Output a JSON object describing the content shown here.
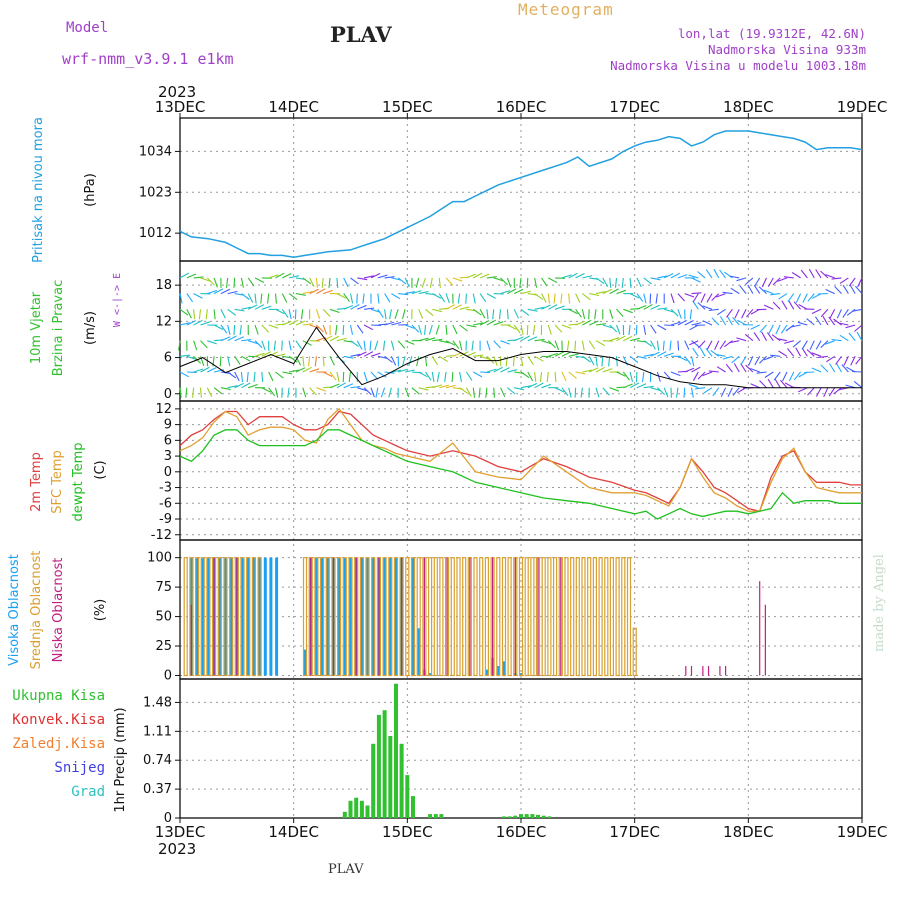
{
  "header": {
    "title": "PLAV",
    "meteogram": "Meteogram",
    "model_label": "Model",
    "model_name": "wrf-nmm_v3.9.1 e1km",
    "lonlat": "lon,lat (19.9312E, 42.6N)",
    "altitude": "Nadmorska Visina 933m",
    "model_altitude": "Nadmorska Visina u modelu 1003.18m",
    "footer": "PLAV",
    "credit": "made by Angel"
  },
  "colors": {
    "pressure": "#22a0e0",
    "wind_speed": "#000000",
    "temp_2m": "#e04040",
    "temp_sfc": "#e0a030",
    "dewpoint": "#20c020",
    "high_cloud": "#1aa0f0",
    "mid_cloud": "#d8a030",
    "low_cloud": "#c02080",
    "precip_total": "#30c030",
    "precip_conv": "#e03030",
    "precip_front": "#f08030",
    "snow": "#4040e0",
    "hail": "#30c0c0"
  },
  "chart_data": {
    "type": "line",
    "top_axis_year": "2023",
    "bottom_axis_year": "2023",
    "x_ticks": [
      "13DEC",
      "14DEC",
      "15DEC",
      "16DEC",
      "17DEC",
      "18DEC",
      "19DEC"
    ],
    "x_range_days": [
      0,
      6
    ],
    "panels": [
      {
        "name": "pressure",
        "ylabel_lines": [
          "Pritisak na nivou mora",
          "(hPa)"
        ],
        "yticks": [
          1012,
          1023,
          1034
        ],
        "ylim": [
          1004.5,
          1043
        ],
        "series": [
          {
            "x": [
              0,
              0.1,
              0.25,
              0.4,
              0.5,
              0.6,
              0.7,
              0.8,
              0.9,
              1.0,
              1.1,
              1.2,
              1.3,
              1.5,
              1.6,
              1.7,
              1.8,
              1.9,
              2.0,
              2.1,
              2.2,
              2.3,
              2.4,
              2.5,
              2.6,
              2.7,
              2.8,
              3.0,
              3.2,
              3.4,
              3.5,
              3.6,
              3.8,
              3.9,
              4.0,
              4.1,
              4.2,
              4.3,
              4.4,
              4.5,
              4.6,
              4.7,
              4.8,
              4.9,
              5.0,
              5.1,
              5.2,
              5.3,
              5.4,
              5.5,
              5.6,
              5.7,
              5.8,
              5.9,
              6.0
            ],
            "y": [
              1012.5,
              1011,
              1010.5,
              1009.5,
              1008,
              1006.5,
              1006.5,
              1006,
              1006,
              1005.5,
              1006,
              1006.5,
              1007,
              1007.5,
              1008.5,
              1009.5,
              1010.5,
              1012,
              1013.5,
              1015,
              1016.5,
              1018.5,
              1020.5,
              1020.5,
              1022,
              1023.5,
              1025,
              1027,
              1029,
              1031,
              1032.5,
              1030,
              1032,
              1034,
              1035.5,
              1036.5,
              1037,
              1038,
              1037.5,
              1035.5,
              1036.5,
              1038.5,
              1039.5,
              1039.5,
              1039.5,
              1039,
              1038.5,
              1038,
              1037.5,
              1036.5,
              1034.5,
              1035,
              1035,
              1035,
              1034.5
            ]
          }
        ]
      },
      {
        "name": "wind",
        "ylabel_lines": [
          "10m Vjetar",
          "Brzina i Pravac",
          "(m/s)"
        ],
        "compass_label": "W <-|-> E",
        "yticks": [
          0,
          6,
          12,
          18
        ],
        "ylim": [
          -1.2,
          22
        ],
        "series": [
          {
            "name": "speed",
            "x": [
              0,
              0.2,
              0.4,
              0.6,
              0.8,
              1.0,
              1.1,
              1.2,
              1.4,
              1.6,
              1.8,
              2.0,
              2.2,
              2.4,
              2.6,
              2.8,
              3.0,
              3.2,
              3.4,
              3.6,
              3.8,
              4.0,
              4.2,
              4.4,
              4.6,
              4.8,
              5.0,
              5.2,
              5.4,
              5.6,
              5.8,
              6.0
            ],
            "y": [
              4.5,
              6,
              3.5,
              5,
              6.5,
              5,
              8,
              11,
              6,
              1.5,
              3,
              5,
              6.5,
              7.5,
              5.5,
              5.5,
              6.5,
              7,
              7,
              6.5,
              6,
              4.5,
              3,
              2,
              1.5,
              1.5,
              1,
              1,
              1,
              1,
              1,
              1
            ]
          }
        ]
      },
      {
        "name": "temperature",
        "ylabel_lines": [
          "2m Temp",
          "SFC Temp",
          "dewpt Temp",
          "(C)"
        ],
        "yticks": [
          -12,
          -9,
          -6,
          -3,
          0,
          3,
          6,
          9,
          12
        ],
        "ylim": [
          -13,
          13.5
        ],
        "series": [
          {
            "name": "2m Temp",
            "x": [
              0,
              0.1,
              0.2,
              0.3,
              0.4,
              0.5,
              0.6,
              0.7,
              0.8,
              0.9,
              1.0,
              1.1,
              1.2,
              1.3,
              1.4,
              1.5,
              1.6,
              1.7,
              1.8,
              1.9,
              2.0,
              2.2,
              2.4,
              2.6,
              2.8,
              3.0,
              3.2,
              3.4,
              3.6,
              3.8,
              4.0,
              4.1,
              4.2,
              4.3,
              4.4,
              4.5,
              4.6,
              4.7,
              4.8,
              4.9,
              5.0,
              5.1,
              5.2,
              5.3,
              5.4,
              5.5,
              5.6,
              5.7,
              5.8,
              5.9,
              6.0
            ],
            "y": [
              5,
              7,
              8,
              10,
              11.5,
              11.5,
              9,
              10.5,
              10.5,
              10.5,
              9,
              8,
              8,
              9,
              11.5,
              11,
              9,
              7,
              6,
              5,
              4,
              3,
              4,
              3,
              1,
              0,
              2.5,
              1,
              -1,
              -2,
              -3.5,
              -4,
              -5,
              -6,
              -3,
              2.5,
              0,
              -3,
              -4,
              -5.5,
              -7,
              -7.5,
              -1,
              3,
              4,
              0,
              -2,
              -2,
              -2,
              -2.5,
              -2.5
            ]
          },
          {
            "name": "SFC Temp",
            "x": [
              0,
              0.1,
              0.2,
              0.3,
              0.4,
              0.5,
              0.6,
              0.7,
              0.8,
              0.9,
              1.0,
              1.1,
              1.2,
              1.3,
              1.4,
              1.5,
              1.6,
              1.7,
              1.8,
              1.9,
              2.0,
              2.2,
              2.4,
              2.6,
              2.8,
              3.0,
              3.2,
              3.4,
              3.6,
              3.8,
              4.0,
              4.1,
              4.2,
              4.3,
              4.4,
              4.5,
              4.6,
              4.7,
              4.8,
              4.9,
              5.0,
              5.1,
              5.2,
              5.3,
              5.4,
              5.5,
              5.6,
              5.7,
              5.8,
              5.9,
              6.0
            ],
            "y": [
              4,
              5,
              6.5,
              9.5,
              11.5,
              10.5,
              7,
              8,
              8.5,
              8.5,
              8,
              6,
              5.5,
              10,
              12,
              9,
              6,
              5,
              4.5,
              3.5,
              3,
              2,
              5.5,
              0,
              -1,
              -1.5,
              3,
              0,
              -3,
              -4,
              -4,
              -4.5,
              -5.5,
              -6.5,
              -3,
              2.5,
              -1,
              -4,
              -5,
              -6.5,
              -7.5,
              -7.5,
              -2,
              2.5,
              4.5,
              0,
              -3,
              -3.5,
              -4,
              -4,
              -4
            ]
          },
          {
            "name": "dewpt Temp",
            "x": [
              0,
              0.1,
              0.2,
              0.3,
              0.4,
              0.5,
              0.6,
              0.7,
              0.8,
              0.9,
              1.0,
              1.1,
              1.2,
              1.3,
              1.4,
              1.5,
              1.6,
              1.7,
              1.8,
              1.9,
              2.0,
              2.2,
              2.4,
              2.6,
              2.8,
              3.0,
              3.2,
              3.4,
              3.6,
              3.8,
              4.0,
              4.1,
              4.2,
              4.3,
              4.4,
              4.5,
              4.6,
              4.7,
              4.8,
              4.9,
              5.0,
              5.1,
              5.2,
              5.3,
              5.4,
              5.5,
              5.6,
              5.7,
              5.8,
              5.9,
              6.0
            ],
            "y": [
              3,
              2,
              4,
              7,
              8,
              8,
              6,
              5,
              5,
              5,
              5,
              5,
              6,
              8,
              8,
              7,
              6,
              5,
              4,
              3,
              2,
              1,
              0,
              -2,
              -3,
              -4,
              -5,
              -5.5,
              -6,
              -7,
              -8,
              -7.5,
              -9,
              -8,
              -7,
              -8,
              -8.5,
              -8,
              -7.5,
              -7.5,
              -8,
              -7.5,
              -7,
              -4,
              -6,
              -5.5,
              -5.5,
              -5.5,
              -6,
              -6,
              -6
            ]
          }
        ]
      },
      {
        "name": "clouds",
        "ylabel_lines": [
          "Visoka Oblacnost",
          "Srednja Oblacnost",
          "Niska Oblacnost",
          "(%)"
        ],
        "yticks": [
          0,
          25,
          50,
          75,
          100
        ],
        "ylim": [
          -3,
          115
        ],
        "high_x": [
          0.1,
          0.15,
          0.2,
          0.25,
          0.3,
          0.35,
          0.4,
          0.45,
          0.5,
          0.55,
          0.6,
          0.65,
          0.7,
          0.75,
          0.8,
          0.85,
          1.1,
          1.15,
          1.2,
          1.25,
          1.3,
          1.35,
          1.4,
          1.45,
          1.5,
          1.55,
          1.6,
          1.65,
          1.7,
          1.75,
          1.8,
          1.85,
          1.9,
          1.95,
          2.05,
          2.1,
          2.15,
          2.2,
          2.7,
          2.75,
          2.8,
          2.85,
          2.95,
          3.0
        ],
        "high_y": [
          100,
          100,
          100,
          100,
          100,
          100,
          100,
          100,
          100,
          100,
          100,
          100,
          100,
          100,
          100,
          100,
          22,
          100,
          100,
          100,
          100,
          100,
          100,
          100,
          100,
          100,
          100,
          100,
          100,
          100,
          100,
          100,
          100,
          100,
          100,
          40,
          5,
          2,
          5,
          15,
          8,
          12,
          2,
          2
        ],
        "mid_x": [
          0.05,
          0.1,
          0.15,
          0.2,
          0.25,
          0.3,
          0.35,
          0.4,
          0.45,
          0.5,
          0.55,
          0.6,
          0.65,
          0.7,
          1.1,
          1.15,
          1.2,
          1.25,
          1.3,
          1.35,
          1.4,
          1.45,
          1.5,
          1.55,
          1.6,
          1.65,
          1.7,
          1.75,
          1.8,
          1.85,
          1.9,
          1.95,
          2.0,
          2.05,
          2.1,
          2.15,
          2.2,
          2.25,
          2.3,
          2.35,
          2.4,
          2.45,
          2.5,
          2.55,
          2.6,
          2.65,
          2.7,
          2.75,
          2.8,
          2.85,
          2.9,
          2.95,
          3.0,
          3.05,
          3.1,
          3.15,
          3.2,
          3.25,
          3.3,
          3.35,
          3.4,
          3.45,
          3.5,
          3.55,
          3.6,
          3.65,
          3.7,
          3.75,
          3.8,
          3.85,
          3.9,
          3.95,
          4.0
        ],
        "mid_y": [
          100,
          100,
          100,
          100,
          100,
          100,
          100,
          100,
          100,
          100,
          100,
          100,
          100,
          100,
          100,
          100,
          100,
          100,
          100,
          100,
          100,
          100,
          100,
          100,
          100,
          100,
          100,
          100,
          100,
          100,
          100,
          100,
          100,
          100,
          100,
          100,
          100,
          100,
          100,
          100,
          100,
          100,
          100,
          100,
          100,
          100,
          100,
          100,
          100,
          100,
          100,
          100,
          100,
          100,
          100,
          100,
          100,
          100,
          100,
          100,
          100,
          100,
          100,
          100,
          100,
          100,
          100,
          100,
          100,
          100,
          100,
          100,
          40
        ],
        "low_x": [
          0.1,
          0.3,
          0.5,
          1.15,
          1.35,
          1.55,
          1.75,
          1.95,
          2.15,
          2.35,
          2.55,
          2.75,
          2.95,
          3.15,
          3.35,
          4.45,
          4.5,
          4.6,
          4.65,
          4.75,
          4.8,
          5.1,
          5.15
        ],
        "low_y": [
          60,
          100,
          100,
          100,
          100,
          100,
          100,
          100,
          100,
          100,
          100,
          100,
          100,
          100,
          100,
          8,
          8,
          8,
          8,
          8,
          8,
          80,
          60
        ]
      },
      {
        "name": "precipitation",
        "ylabel_lines": [
          "1hr Precip (mm)"
        ],
        "legend": [
          "Ukupna Kisa",
          "Konvek.Kisa",
          "Zaledj.Kisa",
          "Snijeg",
          "Grad"
        ],
        "yticks": [
          0,
          0.37,
          0.74,
          1.11,
          1.48
        ],
        "ylim": [
          0,
          1.78
        ],
        "x": [
          1.45,
          1.5,
          1.55,
          1.6,
          1.65,
          1.7,
          1.75,
          1.8,
          1.85,
          1.9,
          1.95,
          2.0,
          2.05,
          2.2,
          2.25,
          2.3,
          2.85,
          2.9,
          2.95,
          3.0,
          3.05,
          3.1,
          3.15,
          3.2,
          3.25
        ],
        "y": [
          0.08,
          0.22,
          0.26,
          0.22,
          0.16,
          0.95,
          1.32,
          1.38,
          1.05,
          1.72,
          0.95,
          0.55,
          0.28,
          0.05,
          0.05,
          0.05,
          0.02,
          0.02,
          0.03,
          0.05,
          0.05,
          0.05,
          0.04,
          0.03,
          0.02
        ]
      }
    ]
  }
}
